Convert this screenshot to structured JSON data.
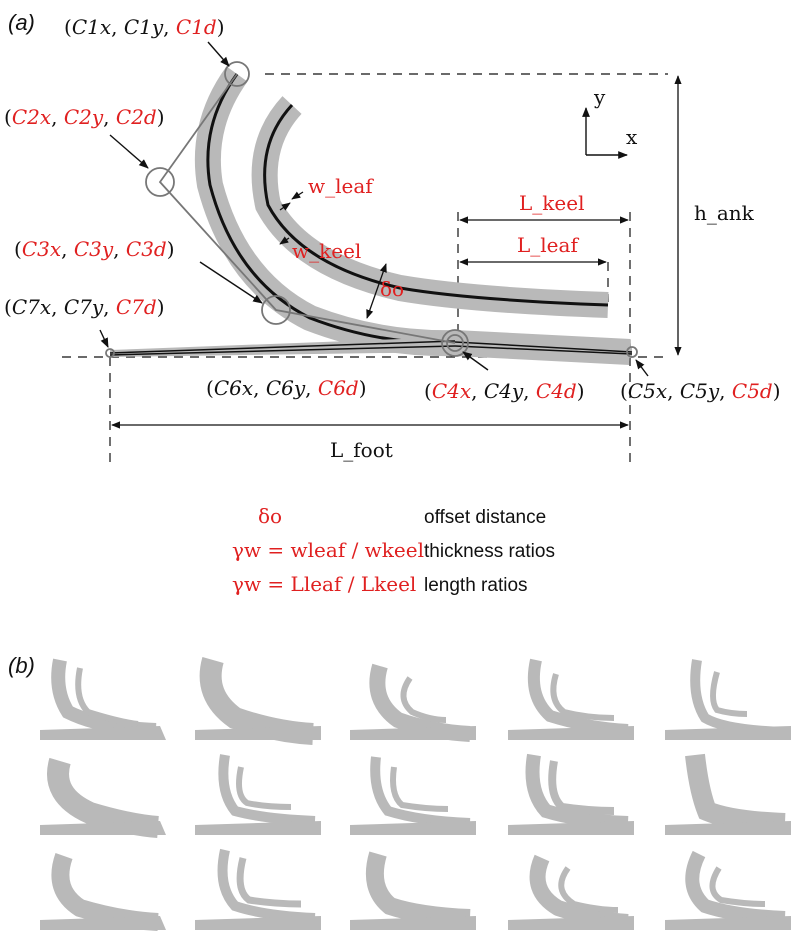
{
  "panel_a": {
    "label": "(a)",
    "points": {
      "c1": {
        "x": "C1x",
        "y": "C1y",
        "d": "C1d"
      },
      "c2": {
        "x": "C2x",
        "y": "C2y",
        "d": "C2d"
      },
      "c3": {
        "x": "C3x",
        "y": "C3y",
        "d": "C3d"
      },
      "c4": {
        "x": "C4x",
        "y": "C4y",
        "d": "C4d"
      },
      "c5": {
        "x": "C5x",
        "y": "C5y",
        "d": "C5d"
      },
      "c6": {
        "x": "C6x",
        "y": "C6y",
        "d": "C6d"
      },
      "c7": {
        "x": "C7x",
        "y": "C7y",
        "d": "C7d"
      }
    },
    "dims": {
      "w_leaf": "w_leaf",
      "w_keel": "w_keel",
      "delta_o": "δo",
      "L_keel": "L_keel",
      "L_leaf": "L_leaf",
      "h_ank": "h_ank",
      "L_foot": "L_foot"
    },
    "axes": {
      "y": "y",
      "x": "x"
    },
    "legend": [
      {
        "symbol": "δo",
        "desc": "offset distance"
      },
      {
        "symbol": "γw = wleaf / wkeel",
        "desc": "thickness ratios"
      },
      {
        "symbol": "γw = Lleaf / Lkeel",
        "desc": "length ratios"
      }
    ]
  },
  "panel_b": {
    "label": "(b)"
  },
  "colors": {
    "highlight": "#e02020",
    "shape": "#b9b9b9",
    "line": "#111111"
  }
}
